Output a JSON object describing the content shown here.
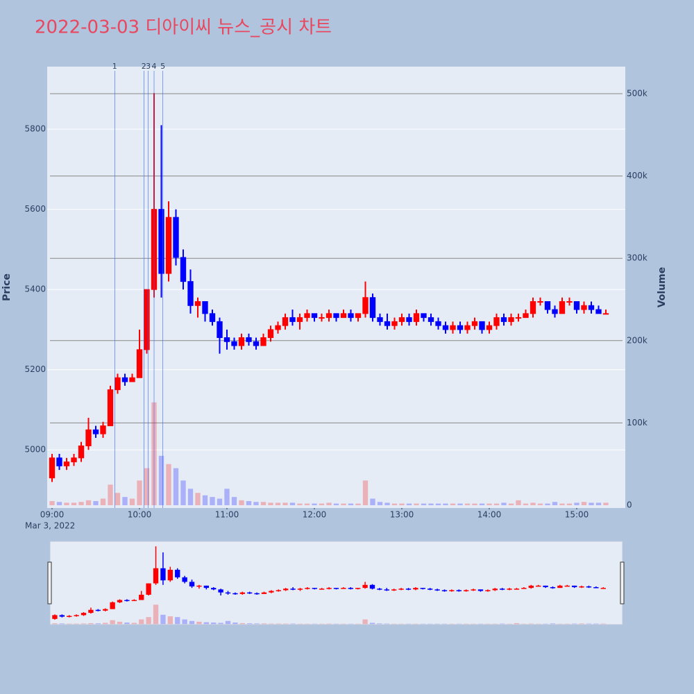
{
  "chart_data": {
    "type": "candlestick",
    "title": "2022-03-03 디아이씨 뉴스_공시 차트",
    "ylabel": "Price",
    "y2label": "Volume",
    "increasing_color": "#ff0000",
    "decreasing_color": "#0000ff",
    "x": [
      "2022-03-03 09:00",
      "2022-03-03 09:05",
      "2022-03-03 09:10",
      "2022-03-03 09:15",
      "2022-03-03 09:20",
      "2022-03-03 09:25",
      "2022-03-03 09:30",
      "2022-03-03 09:35",
      "2022-03-03 09:40",
      "2022-03-03 09:45",
      "2022-03-03 09:50",
      "2022-03-03 09:55",
      "2022-03-03 10:00",
      "2022-03-03 10:05",
      "2022-03-03 10:10",
      "2022-03-03 10:15",
      "2022-03-03 10:20",
      "2022-03-03 10:25",
      "2022-03-03 10:30",
      "2022-03-03 10:35",
      "2022-03-03 10:40",
      "2022-03-03 10:45",
      "2022-03-03 10:50",
      "2022-03-03 10:55",
      "2022-03-03 11:00",
      "2022-03-03 11:05",
      "2022-03-03 11:10",
      "2022-03-03 11:15",
      "2022-03-03 11:20",
      "2022-03-03 11:25",
      "2022-03-03 11:30",
      "2022-03-03 11:35",
      "2022-03-03 11:40",
      "2022-03-03 11:45",
      "2022-03-03 11:50",
      "2022-03-03 11:55",
      "2022-03-03 12:00",
      "2022-03-03 12:05",
      "2022-03-03 12:10",
      "2022-03-03 12:15",
      "2022-03-03 12:20",
      "2022-03-03 12:25",
      "2022-03-03 12:30",
      "2022-03-03 12:35",
      "2022-03-03 12:40",
      "2022-03-03 12:45",
      "2022-03-03 12:50",
      "2022-03-03 12:55",
      "2022-03-03 13:00",
      "2022-03-03 13:05",
      "2022-03-03 13:10",
      "2022-03-03 13:15",
      "2022-03-03 13:20",
      "2022-03-03 13:25",
      "2022-03-03 13:30",
      "2022-03-03 13:35",
      "2022-03-03 13:40",
      "2022-03-03 13:45",
      "2022-03-03 13:50",
      "2022-03-03 13:55",
      "2022-03-03 14:00",
      "2022-03-03 14:05",
      "2022-03-03 14:10",
      "2022-03-03 14:15",
      "2022-03-03 14:20",
      "2022-03-03 14:25",
      "2022-03-03 14:30",
      "2022-03-03 14:35",
      "2022-03-03 14:40",
      "2022-03-03 14:45",
      "2022-03-03 14:50",
      "2022-03-03 14:55",
      "2022-03-03 15:00",
      "2022-03-03 15:05",
      "2022-03-03 15:10",
      "2022-03-03 15:15",
      "2022-03-03 15:20"
    ],
    "open": [
      4930,
      4980,
      4960,
      4970,
      4980,
      5010,
      5050,
      5040,
      5060,
      5150,
      5180,
      5170,
      5180,
      5250,
      5400,
      5600,
      5440,
      5580,
      5480,
      5420,
      5360,
      5370,
      5340,
      5320,
      5280,
      5270,
      5260,
      5280,
      5270,
      5260,
      5280,
      5300,
      5310,
      5330,
      5320,
      5330,
      5340,
      5330,
      5330,
      5340,
      5330,
      5340,
      5330,
      5340,
      5380,
      5330,
      5320,
      5310,
      5320,
      5330,
      5320,
      5340,
      5330,
      5320,
      5310,
      5300,
      5310,
      5300,
      5310,
      5320,
      5300,
      5310,
      5330,
      5320,
      5330,
      5330,
      5340,
      5370,
      5370,
      5350,
      5340,
      5370,
      5370,
      5350,
      5360,
      5350,
      5340
    ],
    "high": [
      4990,
      4990,
      4980,
      4990,
      5020,
      5080,
      5060,
      5070,
      5160,
      5190,
      5190,
      5190,
      5300,
      5400,
      5890,
      5810,
      5620,
      5600,
      5500,
      5450,
      5380,
      5370,
      5350,
      5330,
      5300,
      5280,
      5290,
      5290,
      5280,
      5290,
      5310,
      5320,
      5340,
      5350,
      5340,
      5350,
      5340,
      5340,
      5350,
      5340,
      5350,
      5350,
      5340,
      5420,
      5390,
      5340,
      5340,
      5330,
      5340,
      5340,
      5350,
      5340,
      5340,
      5330,
      5320,
      5320,
      5320,
      5320,
      5330,
      5320,
      5320,
      5340,
      5340,
      5340,
      5340,
      5350,
      5380,
      5380,
      5370,
      5360,
      5380,
      5380,
      5370,
      5370,
      5370,
      5360,
      5350
    ],
    "low": [
      4920,
      4950,
      4950,
      4960,
      4970,
      5000,
      5030,
      5030,
      5060,
      5140,
      5160,
      5170,
      5180,
      5240,
      5380,
      5380,
      5420,
      5460,
      5400,
      5340,
      5330,
      5320,
      5310,
      5240,
      5250,
      5250,
      5250,
      5260,
      5250,
      5260,
      5270,
      5290,
      5300,
      5310,
      5300,
      5320,
      5320,
      5320,
      5320,
      5320,
      5330,
      5320,
      5320,
      5330,
      5320,
      5310,
      5300,
      5300,
      5310,
      5310,
      5310,
      5320,
      5310,
      5300,
      5290,
      5290,
      5290,
      5290,
      5300,
      5290,
      5290,
      5300,
      5310,
      5310,
      5320,
      5330,
      5330,
      5360,
      5340,
      5330,
      5340,
      5360,
      5340,
      5340,
      5340,
      5340,
      5340
    ],
    "close": [
      4980,
      4960,
      4970,
      4980,
      5010,
      5050,
      5040,
      5060,
      5150,
      5180,
      5170,
      5180,
      5250,
      5400,
      5600,
      5440,
      5580,
      5480,
      5420,
      5360,
      5370,
      5340,
      5320,
      5280,
      5270,
      5260,
      5280,
      5270,
      5260,
      5280,
      5300,
      5310,
      5330,
      5320,
      5330,
      5340,
      5330,
      5330,
      5340,
      5330,
      5340,
      5330,
      5340,
      5380,
      5330,
      5320,
      5310,
      5320,
      5330,
      5320,
      5340,
      5330,
      5320,
      5310,
      5300,
      5310,
      5300,
      5310,
      5320,
      5300,
      5310,
      5330,
      5320,
      5330,
      5330,
      5340,
      5370,
      5370,
      5350,
      5340,
      5370,
      5370,
      5350,
      5360,
      5350,
      5340,
      5340
    ],
    "volume": [
      5000,
      4000,
      3000,
      3000,
      4000,
      6000,
      5000,
      8000,
      25000,
      15000,
      10000,
      8000,
      30000,
      45000,
      125000,
      60000,
      50000,
      45000,
      30000,
      20000,
      15000,
      12000,
      10000,
      8000,
      20000,
      10000,
      6000,
      5000,
      4000,
      4000,
      3000,
      3000,
      3000,
      3000,
      2000,
      2000,
      2000,
      2000,
      3000,
      2000,
      2000,
      2000,
      2000,
      30000,
      8000,
      4000,
      3000,
      2000,
      2000,
      2000,
      2000,
      2000,
      2000,
      2000,
      2000,
      2000,
      2000,
      2000,
      2000,
      2000,
      2000,
      2000,
      3000,
      2000,
      6000,
      2000,
      3000,
      2000,
      2000,
      4000,
      2000,
      2000,
      3000,
      4000,
      3000,
      3000,
      3000
    ],
    "xlim": [
      "2022-03-03 08:56:40",
      "2022-03-03 15:33:20"
    ],
    "xticks": [
      {
        "value": "2022-03-03 09:00",
        "label": "09:00"
      },
      {
        "value": "2022-03-03 10:00",
        "label": "10:00"
      },
      {
        "value": "2022-03-03 11:00",
        "label": "11:00"
      },
      {
        "value": "2022-03-03 12:00",
        "label": "12:00"
      },
      {
        "value": "2022-03-03 13:00",
        "label": "13:00"
      },
      {
        "value": "2022-03-03 14:00",
        "label": "14:00"
      },
      {
        "value": "2022-03-03 15:00",
        "label": "15:00"
      }
    ],
    "xdate_label": "Mar 3, 2022",
    "ylim": [
      4855,
      5956
    ],
    "yticks": [
      5000,
      5200,
      5400,
      5600,
      5800
    ],
    "y2lim": [
      -3400,
      532900
    ],
    "y2ticks": [
      0,
      {
        "value": 100000,
        "label": "100k"
      },
      {
        "value": 200000,
        "label": "200k"
      },
      {
        "value": 300000,
        "label": "300k"
      },
      {
        "value": 400000,
        "label": "400k"
      },
      {
        "value": 500000,
        "label": "500k"
      }
    ],
    "annotations": [
      {
        "x": "2022-03-03 09:43",
        "text": "1"
      },
      {
        "x": "2022-03-03 10:03",
        "text": "2"
      },
      {
        "x": "2022-03-03 10:06",
        "text": "3"
      },
      {
        "x": "2022-03-03 10:10",
        "text": "4"
      },
      {
        "x": "2022-03-03 10:16",
        "text": "5"
      }
    ],
    "grid": true,
    "rangeslider": true
  }
}
